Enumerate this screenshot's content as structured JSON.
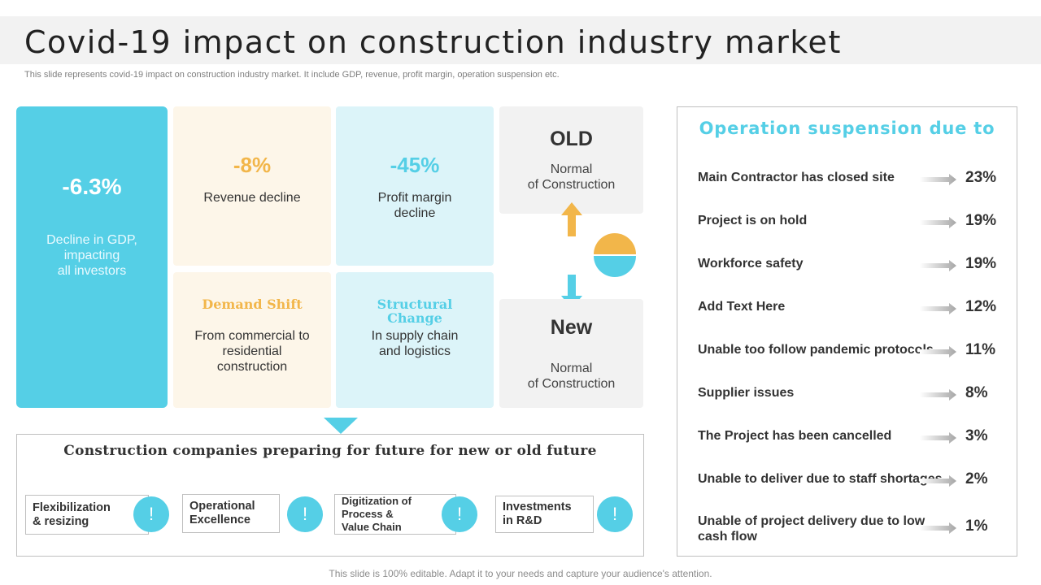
{
  "header": {
    "title": "Covid-19 impact on construction industry market",
    "subtitle": "This slide represents covid-19 impact on construction industry market. It include GDP, revenue, profit margin, operation suspension etc."
  },
  "colors": {
    "accent_blue": "#55cfe6",
    "accent_orange": "#f2b64a",
    "cream": "#fdf6e9",
    "light_blue": "#dcf4f9",
    "grey": "#f2f2f2"
  },
  "gdp_card": {
    "value": "-6.3%",
    "desc_1": "Decline in GDP,",
    "desc_2": "impacting",
    "desc_3": "all investors"
  },
  "revenue_card": {
    "value": "-8%",
    "label": "Revenue decline"
  },
  "profit_card": {
    "value": "-45%",
    "label_1": "Profit margin",
    "label_2": "decline"
  },
  "demand_card": {
    "title": "Demand Shift",
    "text_1": "From commercial to",
    "text_2": "residential",
    "text_3": "construction"
  },
  "structural_card": {
    "title_1": "Structural",
    "title_2": "Change",
    "text_1": "In supply chain",
    "text_2": "and logistics"
  },
  "old_card": {
    "title": "OLD",
    "text_1": "Normal",
    "text_2": "of Construction"
  },
  "new_card": {
    "title": "New",
    "text_1": "Normal",
    "text_2": "of Construction"
  },
  "future": {
    "title": "Construction companies preparing for future for new or old future",
    "items": [
      {
        "line1": "Flexibilization",
        "line2": "& resizing",
        "icon": "!"
      },
      {
        "line1": "Operational",
        "line2": "Excellence",
        "icon": "!"
      },
      {
        "line1": "Digitization of",
        "line2": "Process &",
        "line3": "Value Chain",
        "icon": "!"
      },
      {
        "line1": "Investments",
        "line2": "in R&D",
        "icon": "!"
      }
    ]
  },
  "suspension": {
    "title": "Operation suspension due to",
    "rows": [
      {
        "label": "Main Contractor has closed site",
        "pct": "23%"
      },
      {
        "label": "Project is on hold",
        "pct": "19%"
      },
      {
        "label": "Workforce safety",
        "pct": "19%"
      },
      {
        "label": "Add Text Here",
        "pct": "12%"
      },
      {
        "label": "Unable too follow pandemic protocols",
        "pct": "11%"
      },
      {
        "label": "Supplier issues",
        "pct": "8%"
      },
      {
        "label": "The Project has been cancelled",
        "pct": "3%"
      },
      {
        "label": "Unable to deliver due to staff shortages",
        "pct": "2%"
      },
      {
        "label_1": "Unable of project delivery due to low",
        "label_2": "cash flow",
        "pct": "1%"
      }
    ]
  },
  "footer": {
    "text": "This slide is 100% editable. Adapt it to your needs and capture your audience's attention."
  }
}
